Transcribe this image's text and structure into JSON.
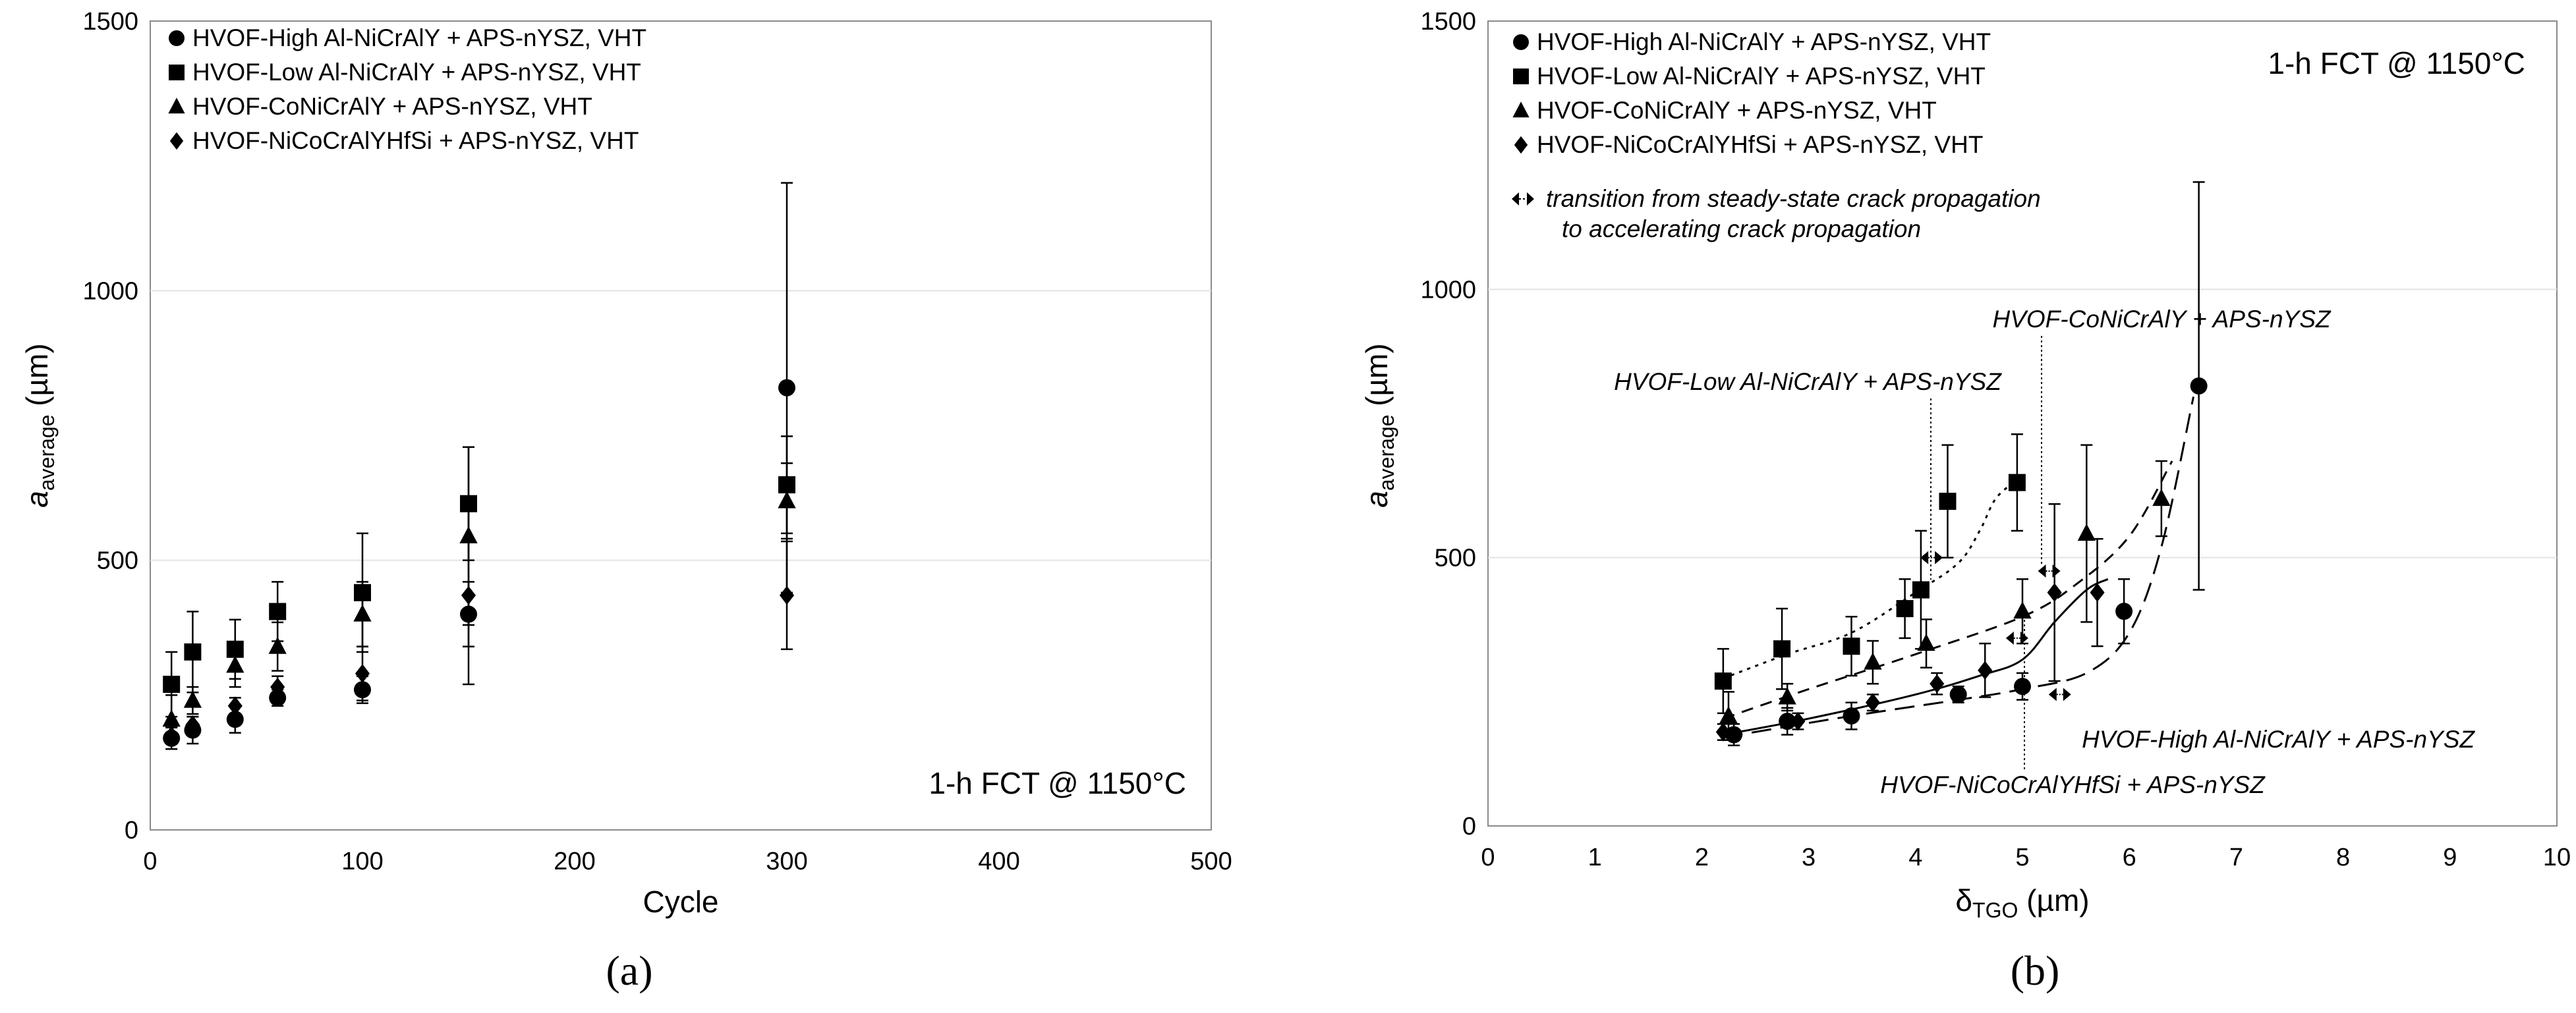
{
  "chart_data": [
    {
      "type": "scatter",
      "panel_label": "(a)",
      "condition": "1-h FCT @ 1150°C",
      "xlabel": "Cycle",
      "ylabel": {
        "main": "a",
        "sub": "average",
        "unit": " (µm)"
      },
      "xlim": [
        0,
        500
      ],
      "ylim": [
        0,
        1500
      ],
      "xticks": [
        0,
        100,
        200,
        300,
        400,
        500
      ],
      "yticks": [
        0,
        500,
        1000,
        1500
      ],
      "grid": "horizontal",
      "legend_position": "top-left",
      "series": [
        {
          "name": "HVOF-High Al-NiCrAlY + APS-nYSZ, VHT",
          "marker": "circle",
          "color": "#000000",
          "points": [
            {
              "x": 10,
              "y": 170,
              "err": 20
            },
            {
              "x": 20,
              "y": 185,
              "err": 25
            },
            {
              "x": 40,
              "y": 205,
              "err": 25
            },
            {
              "x": 60,
              "y": 245,
              "err": 15
            },
            {
              "x": 100,
              "y": 260,
              "err": 25
            },
            {
              "x": 150,
              "y": 400,
              "err": 60
            },
            {
              "x": 300,
              "y": 820,
              "err": 380
            }
          ]
        },
        {
          "name": "HVOF-Low Al-NiCrAlY + APS-nYSZ, VHT",
          "marker": "square",
          "color": "#000000",
          "points": [
            {
              "x": 10,
              "y": 270,
              "err": 60
            },
            {
              "x": 20,
              "y": 330,
              "err": 75
            },
            {
              "x": 40,
              "y": 335,
              "err": 55
            },
            {
              "x": 60,
              "y": 405,
              "err": 55
            },
            {
              "x": 100,
              "y": 440,
              "err": 110
            },
            {
              "x": 150,
              "y": 605,
              "err": 105
            },
            {
              "x": 300,
              "y": 640,
              "err": 90
            }
          ]
        },
        {
          "name": "HVOF-CoNiCrAlY + APS-nYSZ, VHT",
          "marker": "triangle",
          "color": "#000000",
          "points": [
            {
              "x": 10,
              "y": 205,
              "err": 45
            },
            {
              "x": 20,
              "y": 240,
              "err": 25
            },
            {
              "x": 40,
              "y": 305,
              "err": 40
            },
            {
              "x": 60,
              "y": 340,
              "err": 45
            },
            {
              "x": 100,
              "y": 400,
              "err": 60
            },
            {
              "x": 150,
              "y": 545,
              "err": 165
            },
            {
              "x": 300,
              "y": 610,
              "err": 70
            }
          ]
        },
        {
          "name": "HVOF-NiCoCrAlYHfSi + APS-nYSZ, VHT",
          "marker": "diamond",
          "color": "#000000",
          "points": [
            {
              "x": 10,
              "y": 175,
              "err": 15
            },
            {
              "x": 20,
              "y": 195,
              "err": 15
            },
            {
              "x": 40,
              "y": 230,
              "err": 15
            },
            {
              "x": 60,
              "y": 265,
              "err": 20
            },
            {
              "x": 100,
              "y": 290,
              "err": 50
            },
            {
              "x": 150,
              "y": 435,
              "err": 165
            },
            {
              "x": 300,
              "y": 435,
              "err": 100
            }
          ]
        }
      ]
    },
    {
      "type": "scatter",
      "panel_label": "(b)",
      "condition": "1-h FCT @ 1150°C",
      "xlabel": {
        "main": "δ",
        "sub": "TGO",
        "unit": " (µm)"
      },
      "ylabel": {
        "main": "a",
        "sub": "average",
        "unit": " (µm)"
      },
      "xlim": [
        0,
        10
      ],
      "ylim": [
        0,
        1500
      ],
      "xticks": [
        0,
        1,
        2,
        3,
        4,
        5,
        6,
        7,
        8,
        9,
        10
      ],
      "yticks": [
        0,
        500,
        1000,
        1500
      ],
      "grid": "horizontal",
      "legend_position": "top-left",
      "transition_legend": [
        "transition from steady-state crack propagation",
        "to accelerating crack propagation"
      ],
      "series": [
        {
          "name": "HVOF-High Al-NiCrAlY + APS-nYSZ, VHT",
          "marker": "circle",
          "color": "#000000",
          "line": "long-dash",
          "points": [
            {
              "x": 2.3,
              "y": 170,
              "err": 20
            },
            {
              "x": 2.8,
              "y": 195,
              "err": 25
            },
            {
              "x": 3.4,
              "y": 205,
              "err": 25
            },
            {
              "x": 4.4,
              "y": 245,
              "err": 15
            },
            {
              "x": 5.0,
              "y": 260,
              "err": 25
            },
            {
              "x": 5.95,
              "y": 400,
              "err": 60
            },
            {
              "x": 6.65,
              "y": 820,
              "err": 380
            }
          ],
          "fit": [
            [
              2.2,
              165
            ],
            [
              3.4,
              205
            ],
            [
              4.4,
              235
            ],
            [
              5.0,
              255
            ],
            [
              5.6,
              285
            ],
            [
              6.0,
              360
            ],
            [
              6.3,
              520
            ],
            [
              6.6,
              800
            ]
          ]
        },
        {
          "name": "HVOF-Low Al-NiCrAlY + APS-nYSZ, VHT",
          "marker": "square",
          "color": "#000000",
          "line": "dotted",
          "points": [
            {
              "x": 2.2,
              "y": 270,
              "err": 60
            },
            {
              "x": 2.75,
              "y": 330,
              "err": 75
            },
            {
              "x": 3.4,
              "y": 335,
              "err": 55
            },
            {
              "x": 3.9,
              "y": 405,
              "err": 55
            },
            {
              "x": 4.05,
              "y": 440,
              "err": 110
            },
            {
              "x": 4.3,
              "y": 605,
              "err": 105
            },
            {
              "x": 4.95,
              "y": 640,
              "err": 90
            }
          ],
          "fit": [
            [
              2.2,
              275
            ],
            [
              2.8,
              320
            ],
            [
              3.4,
              360
            ],
            [
              4.0,
              435
            ],
            [
              4.4,
              490
            ],
            [
              4.6,
              550
            ],
            [
              4.75,
              610
            ],
            [
              4.95,
              645
            ]
          ]
        },
        {
          "name": "HVOF-CoNiCrAlY + APS-nYSZ, VHT",
          "marker": "triangle",
          "color": "#000000",
          "line": "dash",
          "points": [
            {
              "x": 2.25,
              "y": 205,
              "err": 45
            },
            {
              "x": 2.8,
              "y": 240,
              "err": 25
            },
            {
              "x": 3.6,
              "y": 305,
              "err": 40
            },
            {
              "x": 4.1,
              "y": 340,
              "err": 45
            },
            {
              "x": 5.0,
              "y": 400,
              "err": 60
            },
            {
              "x": 5.6,
              "y": 545,
              "err": 165
            },
            {
              "x": 6.3,
              "y": 610,
              "err": 70
            }
          ],
          "fit": [
            [
              2.2,
              200
            ],
            [
              3.0,
              255
            ],
            [
              4.0,
              320
            ],
            [
              5.0,
              390
            ],
            [
              5.5,
              450
            ],
            [
              6.0,
              540
            ],
            [
              6.4,
              680
            ]
          ]
        },
        {
          "name": "HVOF-NiCoCrAlYHfSi + APS-nYSZ, VHT",
          "marker": "diamond",
          "color": "#000000",
          "line": "solid",
          "points": [
            {
              "x": 2.2,
              "y": 175,
              "err": 15
            },
            {
              "x": 2.9,
              "y": 195,
              "err": 15
            },
            {
              "x": 3.6,
              "y": 230,
              "err": 15
            },
            {
              "x": 4.2,
              "y": 265,
              "err": 20
            },
            {
              "x": 4.65,
              "y": 290,
              "err": 50
            },
            {
              "x": 5.3,
              "y": 435,
              "err": 165
            },
            {
              "x": 5.7,
              "y": 435,
              "err": 100
            }
          ],
          "fit": [
            [
              2.2,
              170
            ],
            [
              3.0,
              200
            ],
            [
              4.0,
              245
            ],
            [
              4.6,
              280
            ],
            [
              5.0,
              310
            ],
            [
              5.3,
              380
            ],
            [
              5.6,
              440
            ],
            [
              5.8,
              460
            ]
          ]
        }
      ],
      "annotations": [
        {
          "text": "HVOF-CoNiCrAlY + APS-nYSZ",
          "target_series": 2
        },
        {
          "text": "HVOF-Low Al-NiCrAlY + APS-nYSZ",
          "target_series": 1
        },
        {
          "text": "HVOF-High Al-NiCrAlY + APS-nYSZ",
          "target_series": 0
        },
        {
          "text": "HVOF-NiCoCrAlYHfSi + APS-nYSZ",
          "target_series": 3
        }
      ],
      "transition_markers": [
        {
          "x": 4.15,
          "y": 500
        },
        {
          "x": 5.25,
          "y": 475
        },
        {
          "x": 4.95,
          "y": 350
        },
        {
          "x": 5.35,
          "y": 245
        }
      ]
    }
  ]
}
